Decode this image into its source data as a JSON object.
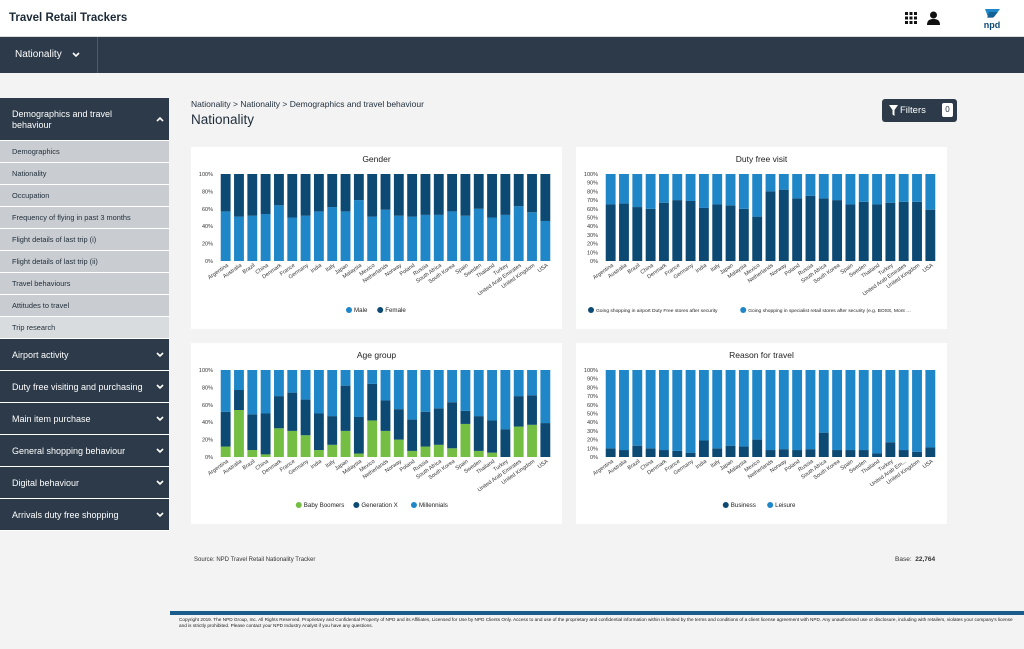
{
  "app": {
    "title": "Travel Retail Trackers"
  },
  "header": {
    "logo_text": "npd"
  },
  "nav": {
    "selected": "Nationality"
  },
  "sidebar": {
    "groups": [
      {
        "label": "Demographics and travel behaviour",
        "expanded": true,
        "items": [
          "Demographics",
          "Nationality",
          "Occupation",
          "Frequency of flying in past 3 months",
          "Flight details of last trip (i)",
          "Flight details of last trip (ii)",
          "Travel behaviours",
          "Attitudes to travel",
          "Trip research"
        ]
      },
      {
        "label": "Airport activity"
      },
      {
        "label": "Duty free visiting and purchasing"
      },
      {
        "label": "Main item purchase"
      },
      {
        "label": "General shopping behaviour"
      },
      {
        "label": "Digital behaviour"
      },
      {
        "label": "Arrivals duty free shopping"
      }
    ]
  },
  "breadcrumb": "Nationality > Nationality > Demographics and travel behaviour",
  "page_title": "Nationality",
  "filters": {
    "label": "Filters",
    "count": "0"
  },
  "colors": {
    "dark": "#0d4a73",
    "light": "#1f86c8",
    "green": "#74bf43",
    "navy": "#2c3a49"
  },
  "chart_data": [
    {
      "type": "bar",
      "stacked": true,
      "title": "Gender",
      "ylim": [
        0,
        100
      ],
      "yticks": [
        "0%",
        "20%",
        "40%",
        "60%",
        "80%",
        "100%"
      ],
      "categories": [
        "Argentina",
        "Australia",
        "Brazil",
        "China",
        "Denmark",
        "France",
        "Germany",
        "India",
        "Italy",
        "Japan",
        "Malaysia",
        "Mexico",
        "Netherlands",
        "Norway",
        "Poland",
        "Russia",
        "South Africa",
        "South Korea",
        "Spain",
        "Sweden",
        "Thailand",
        "Turkey",
        "United Arab Emirates",
        "United Kingdom",
        "USA"
      ],
      "series": [
        {
          "name": "Male",
          "color": "#1f86c8",
          "values": [
            57,
            51,
            52,
            54,
            64,
            50,
            52,
            57,
            62,
            57,
            70,
            51,
            59,
            52,
            51,
            53,
            53,
            57,
            52,
            60,
            50,
            53,
            63,
            56,
            46
          ]
        },
        {
          "name": "Female",
          "color": "#0d4a73",
          "values": [
            43,
            49,
            48,
            46,
            36,
            50,
            48,
            43,
            38,
            43,
            30,
            49,
            41,
            48,
            49,
            47,
            47,
            43,
            48,
            40,
            50,
            47,
            37,
            44,
            54
          ]
        }
      ]
    },
    {
      "type": "bar",
      "stacked": true,
      "title": "Duty free visit",
      "ylim": [
        0,
        100
      ],
      "yticks": [
        "0%",
        "10%",
        "20%",
        "30%",
        "40%",
        "50%",
        "60%",
        "70%",
        "80%",
        "90%",
        "100%"
      ],
      "categories": [
        "Argentina",
        "Australia",
        "Brazil",
        "China",
        "Denmark",
        "France",
        "Germany",
        "India",
        "Italy",
        "Japan",
        "Malaysia",
        "Mexico",
        "Netherlands",
        "Norway",
        "Poland",
        "Russia",
        "South Africa",
        "South Korea",
        "Spain",
        "Sweden",
        "Thailand",
        "Turkey",
        "United Arab Emirates",
        "United Kingdom",
        "USA"
      ],
      "series": [
        {
          "name": "Going shopping in airport Duty Free stores after security",
          "color": "#0d4a73",
          "values": [
            65,
            66,
            62,
            60,
            67,
            70,
            69,
            61,
            65,
            64,
            60,
            51,
            80,
            82,
            72,
            75,
            72,
            70,
            65,
            68,
            65,
            67,
            68,
            68,
            59
          ]
        },
        {
          "name": "Going shopping in specialist retail stores after security (e.g. BOSS, Mont …",
          "color": "#1f86c8",
          "values": [
            35,
            34,
            38,
            40,
            33,
            30,
            31,
            39,
            35,
            36,
            40,
            49,
            20,
            18,
            28,
            25,
            28,
            30,
            35,
            32,
            35,
            33,
            32,
            32,
            41
          ]
        }
      ]
    },
    {
      "type": "bar",
      "stacked": true,
      "title": "Age group",
      "ylim": [
        0,
        100
      ],
      "yticks": [
        "0%",
        "20%",
        "40%",
        "60%",
        "80%",
        "100%"
      ],
      "categories": [
        "Argentina",
        "Australia",
        "Brazil",
        "China",
        "Denmark",
        "France",
        "Germany",
        "India",
        "Italy",
        "Japan",
        "Malaysia",
        "Mexico",
        "Netherlands",
        "Norway",
        "Poland",
        "Russia",
        "South Africa",
        "South Korea",
        "Spain",
        "Sweden",
        "Thailand",
        "Turkey",
        "United Arab Emirates",
        "United Kingdom",
        "USA"
      ],
      "series": [
        {
          "name": "Baby Boomers",
          "color": "#74bf43",
          "values": [
            12,
            54,
            8,
            3,
            33,
            30,
            25,
            8,
            14,
            30,
            4,
            42,
            30,
            20,
            7,
            12,
            14,
            10,
            38,
            7,
            5,
            0,
            35,
            37,
            0
          ]
        },
        {
          "name": "Generation X",
          "color": "#0d4a73",
          "values": [
            40,
            23,
            41,
            47,
            37,
            44,
            41,
            42,
            33,
            52,
            42,
            42,
            35,
            35,
            36,
            40,
            42,
            53,
            15,
            40,
            37,
            32,
            35,
            34,
            39
          ]
        },
        {
          "name": "Millennials",
          "color": "#1f86c8",
          "values": [
            48,
            23,
            51,
            50,
            30,
            26,
            34,
            50,
            53,
            18,
            54,
            16,
            35,
            45,
            57,
            48,
            44,
            37,
            47,
            53,
            58,
            68,
            30,
            29,
            61
          ]
        }
      ]
    },
    {
      "type": "bar",
      "stacked": true,
      "title": "Reason for travel",
      "ylim": [
        0,
        100
      ],
      "yticks": [
        "0%",
        "10%",
        "20%",
        "30%",
        "40%",
        "50%",
        "60%",
        "70%",
        "80%",
        "90%",
        "100%"
      ],
      "categories": [
        "Argentina",
        "Australia",
        "Brazil",
        "China",
        "Denmark",
        "France",
        "Germany",
        "India",
        "Italy",
        "Japan",
        "Malaysia",
        "Mexico",
        "Netherlands",
        "Norway",
        "Poland",
        "Russia",
        "South Africa",
        "South Korea",
        "Spain",
        "Sweden",
        "Thailand",
        "Turkey",
        "United Arab Em...",
        "United Kingdom",
        "USA"
      ],
      "series": [
        {
          "name": "Business",
          "color": "#0d4a73",
          "values": [
            10,
            8,
            13,
            10,
            8,
            7,
            5,
            19,
            10,
            13,
            12,
            20,
            8,
            9,
            8,
            9,
            28,
            8,
            8,
            8,
            4,
            17,
            8,
            6,
            11
          ]
        },
        {
          "name": "Leisure",
          "color": "#1f86c8",
          "values": [
            90,
            92,
            87,
            90,
            92,
            93,
            95,
            81,
            90,
            87,
            88,
            80,
            92,
            91,
            92,
            91,
            72,
            92,
            92,
            92,
            96,
            83,
            92,
            94,
            89
          ]
        }
      ]
    }
  ],
  "source": "Source:  NPD Travel Retail Nationality Tracker",
  "base": {
    "label": "Base:",
    "value": "22,764"
  },
  "footer": "Copyright 2019. The NPD Group, Inc. All Rights Reserved. Proprietary and Confidential Property of NPD and its Affiliates, Licensed for Use by NPD Clients Only. Access to and use of the proprietary and confidential information within is limited by the terms and conditions of a client license agreement with NPD. Any unauthorised use or disclosure, including with retailers, violates your company's license and is strictly prohibited. Please contact your NPD Industry Analyst if you have any questions."
}
